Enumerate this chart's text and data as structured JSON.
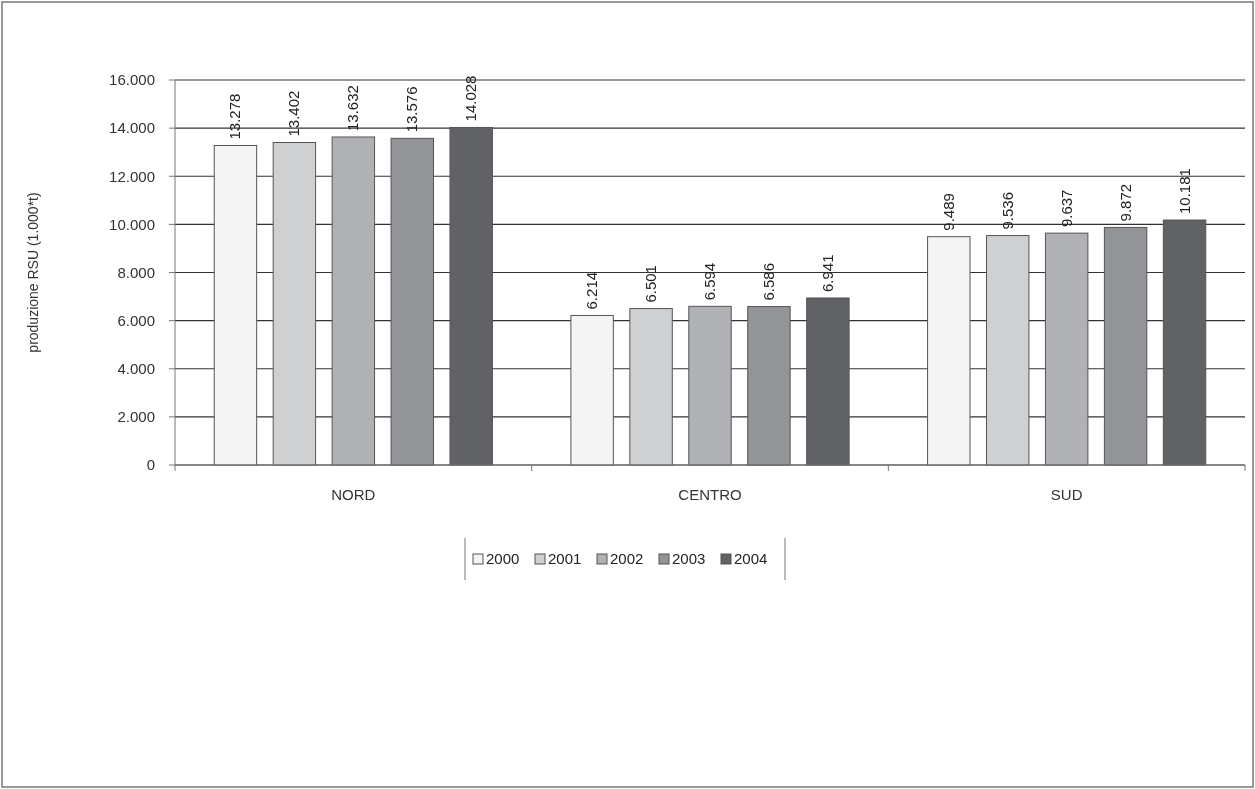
{
  "chart_data": {
    "type": "bar",
    "ylabel": "produzione RSU (1.000*t)",
    "categories": [
      "NORD",
      "CENTRO",
      "SUD"
    ],
    "series": [
      {
        "name": "2000",
        "color": "#f4f4f4",
        "values": [
          13278,
          6214,
          9489
        ],
        "value_labels": [
          "13.278",
          "6.214",
          "9.489"
        ]
      },
      {
        "name": "2001",
        "color": "#cfd0d2",
        "values": [
          13402,
          6501,
          9536
        ],
        "value_labels": [
          "13.402",
          "6.501",
          "9.536"
        ]
      },
      {
        "name": "2002",
        "color": "#b0b1b4",
        "values": [
          13632,
          6594,
          9637
        ],
        "value_labels": [
          "13.632",
          "6.594",
          "9.637"
        ]
      },
      {
        "name": "2003",
        "color": "#939497",
        "values": [
          13576,
          6586,
          9872
        ],
        "value_labels": [
          "13.576",
          "6.586",
          "9.872"
        ]
      },
      {
        "name": "2004",
        "color": "#616266",
        "values": [
          14028,
          6941,
          10181
        ],
        "value_labels": [
          "14.028",
          "6.941",
          "10.181"
        ]
      }
    ],
    "ylim": [
      0,
      16000
    ],
    "yticks": [
      {
        "value": 0,
        "label": "0"
      },
      {
        "value": 2000,
        "label": "2.000"
      },
      {
        "value": 4000,
        "label": "4.000"
      },
      {
        "value": 6000,
        "label": "6.000"
      },
      {
        "value": 8000,
        "label": "8.000"
      },
      {
        "value": 10000,
        "label": "10.000"
      },
      {
        "value": 12000,
        "label": "12.000"
      },
      {
        "value": 14000,
        "label": "14.000"
      },
      {
        "value": 16000,
        "label": "16.000"
      }
    ],
    "grid": "y",
    "legend": "bottom"
  }
}
